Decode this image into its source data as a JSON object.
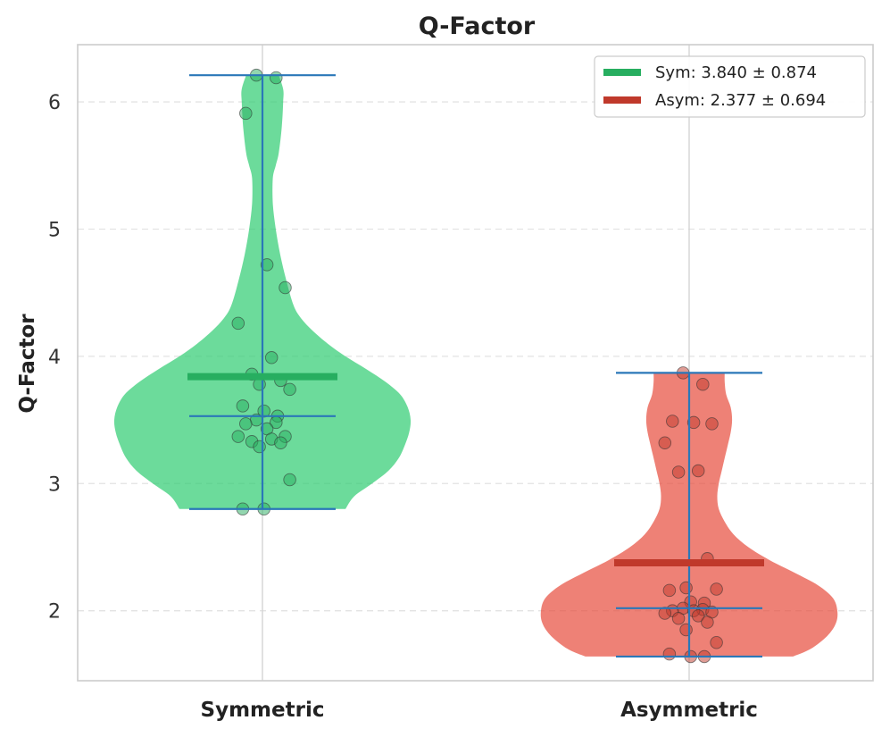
{
  "chart_data": {
    "type": "violin",
    "title": "Q-Factor",
    "ylabel": "Q-Factor",
    "xlabel": "",
    "categories": [
      "Symmetric",
      "Asymmetric"
    ],
    "ylim": [
      1.45,
      6.45
    ],
    "yticks": [
      2,
      3,
      4,
      5,
      6
    ],
    "grid": true,
    "legend_position": "top-right",
    "series": [
      {
        "category": "Symmetric",
        "legend_label": "Sym: 3.840 ± 0.874",
        "color": "#2ecc71",
        "mean_color": "#27ae60",
        "mean": 3.84,
        "median": 3.53,
        "min": 2.8,
        "max": 6.21,
        "density": [
          [
            2.8,
            0.56
          ],
          [
            2.9,
            0.62
          ],
          [
            3.0,
            0.74
          ],
          [
            3.1,
            0.85
          ],
          [
            3.2,
            0.92
          ],
          [
            3.3,
            0.96
          ],
          [
            3.4,
            0.99
          ],
          [
            3.5,
            1.0
          ],
          [
            3.6,
            0.98
          ],
          [
            3.7,
            0.93
          ],
          [
            3.8,
            0.83
          ],
          [
            3.9,
            0.7
          ],
          [
            4.0,
            0.56
          ],
          [
            4.1,
            0.44
          ],
          [
            4.2,
            0.34
          ],
          [
            4.3,
            0.26
          ],
          [
            4.4,
            0.21
          ],
          [
            4.6,
            0.16
          ],
          [
            4.8,
            0.12
          ],
          [
            5.0,
            0.09
          ],
          [
            5.2,
            0.07
          ],
          [
            5.4,
            0.07
          ],
          [
            5.5,
            0.09
          ],
          [
            5.6,
            0.11
          ],
          [
            5.8,
            0.13
          ],
          [
            6.0,
            0.14
          ],
          [
            6.1,
            0.14
          ],
          [
            6.21,
            0.11
          ]
        ],
        "points": [
          6.21,
          6.19,
          5.91,
          4.72,
          4.54,
          4.26,
          3.99,
          3.86,
          3.81,
          3.78,
          3.74,
          3.61,
          3.57,
          3.53,
          3.5,
          3.48,
          3.47,
          3.43,
          3.37,
          3.37,
          3.35,
          3.33,
          3.32,
          3.29,
          3.03,
          2.8,
          2.8
        ]
      },
      {
        "category": "Asymmetric",
        "legend_label": "Asym: 2.377 ± 0.694",
        "color": "#e74c3c",
        "mean_color": "#c0392b",
        "mean": 2.377,
        "median": 2.02,
        "min": 1.64,
        "max": 3.87,
        "density": [
          [
            1.64,
            0.7
          ],
          [
            1.7,
            0.82
          ],
          [
            1.8,
            0.93
          ],
          [
            1.9,
            0.99
          ],
          [
            2.0,
            1.0
          ],
          [
            2.1,
            0.97
          ],
          [
            2.2,
            0.87
          ],
          [
            2.3,
            0.71
          ],
          [
            2.4,
            0.54
          ],
          [
            2.5,
            0.4
          ],
          [
            2.6,
            0.3
          ],
          [
            2.7,
            0.24
          ],
          [
            2.8,
            0.2
          ],
          [
            2.9,
            0.19
          ],
          [
            3.0,
            0.2
          ],
          [
            3.1,
            0.22
          ],
          [
            3.2,
            0.24
          ],
          [
            3.3,
            0.26
          ],
          [
            3.4,
            0.28
          ],
          [
            3.5,
            0.29
          ],
          [
            3.6,
            0.28
          ],
          [
            3.7,
            0.25
          ],
          [
            3.8,
            0.24
          ],
          [
            3.87,
            0.24
          ]
        ],
        "points": [
          3.87,
          3.78,
          3.49,
          3.48,
          3.47,
          3.32,
          3.1,
          3.09,
          2.41,
          2.18,
          2.17,
          2.16,
          2.07,
          2.06,
          2.02,
          2.01,
          2.0,
          2.0,
          1.99,
          1.98,
          1.96,
          1.94,
          1.91,
          1.85,
          1.75,
          1.66,
          1.64,
          1.64
        ]
      }
    ]
  }
}
